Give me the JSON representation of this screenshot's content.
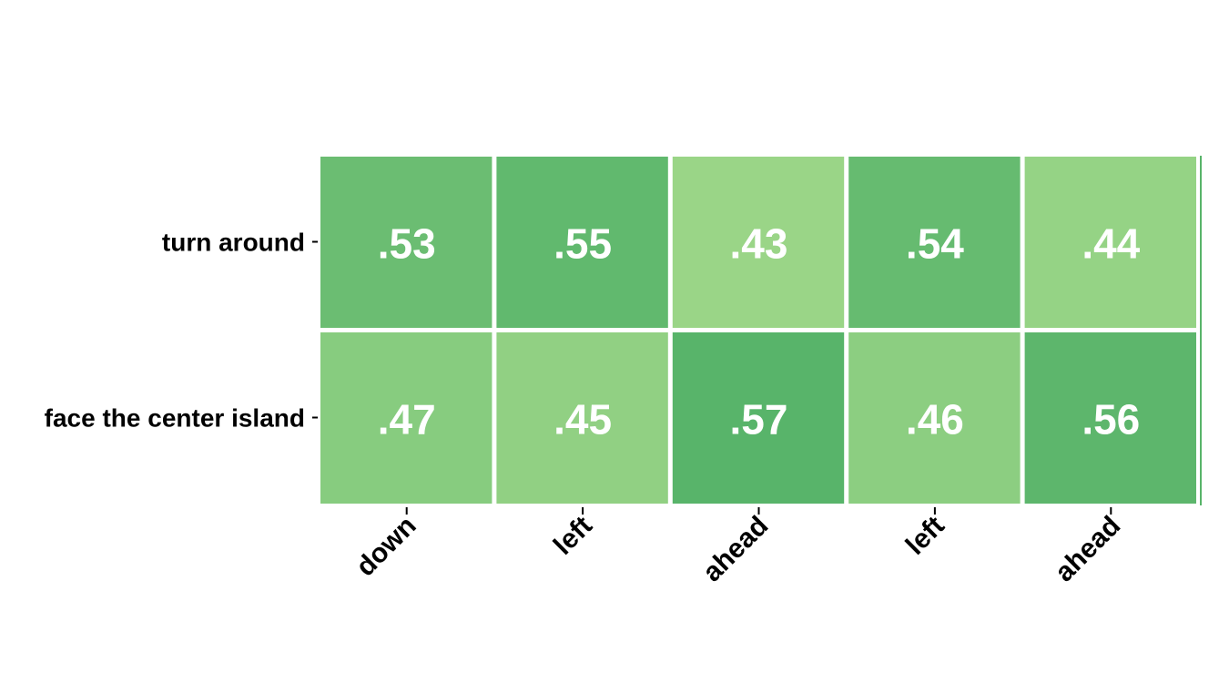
{
  "chart_data": {
    "type": "heatmap",
    "title": "",
    "xlabel": "",
    "ylabel": "",
    "rows": [
      "turn around",
      "face the center island"
    ],
    "columns": [
      "down",
      "left",
      "ahead",
      "left",
      "ahead"
    ],
    "values": [
      [
        0.53,
        0.55,
        0.43,
        0.54,
        0.44
      ],
      [
        0.47,
        0.45,
        0.57,
        0.46,
        0.56
      ]
    ],
    "cell_labels": [
      [
        ".53",
        ".55",
        ".43",
        ".54",
        ".44"
      ],
      [
        ".47",
        ".45",
        ".57",
        ".46",
        ".56"
      ]
    ],
    "colorscale": {
      "low": "#9ad587",
      "high": "#58b46a",
      "min": 0.43,
      "max": 0.57
    },
    "cell_text_color": "#ffffff",
    "legend": false,
    "grid": false
  }
}
